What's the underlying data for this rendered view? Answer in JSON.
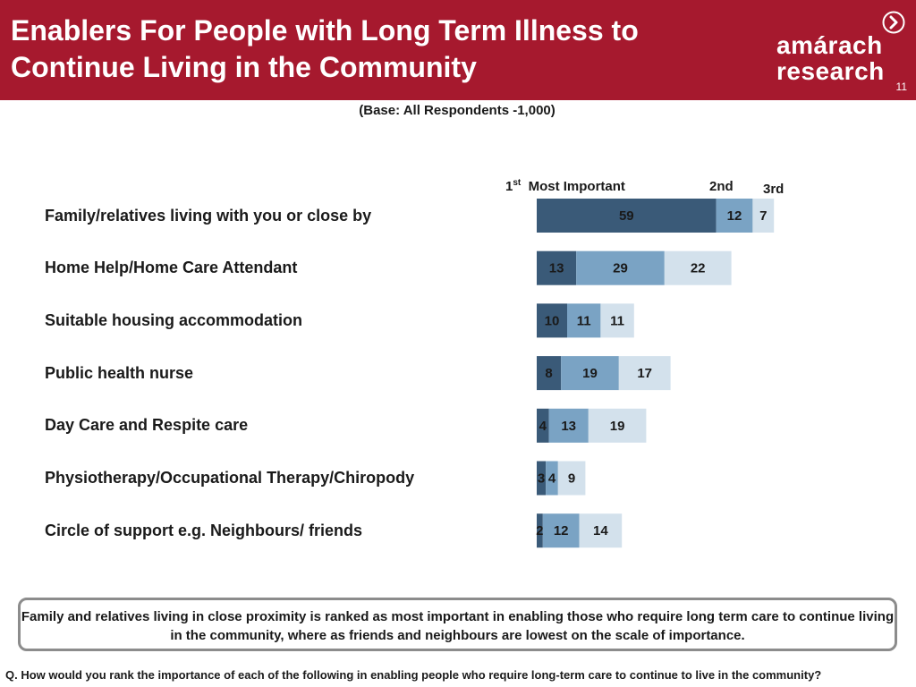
{
  "header": {
    "title_line1": "Enablers For People with Long Term Illness to",
    "title_line2": "Continue Living in the Community",
    "logo_line1": "amárach",
    "logo_line2": "research",
    "logo_icon": "chevron-circle-icon",
    "page_number": "11",
    "background_color": "#a6192e"
  },
  "base_note": "(Base:  All Respondents -1,000)",
  "legend": {
    "first_number": "1",
    "first_sup": "st",
    "first_rest": "Most Important",
    "second": "2nd",
    "third": "3rd"
  },
  "chart_data": {
    "type": "bar",
    "orientation": "horizontal-stacked",
    "categories": [
      "Family/relatives living with you or close by",
      "Home Help/Home Care Attendant",
      "Suitable housing accommodation",
      "Public health nurse",
      "Day Care and Respite care",
      "Physiotherapy/Occupational Therapy/Chiropody",
      "Circle of support e.g. Neighbours/ friends"
    ],
    "series": [
      {
        "name": "1st Most Important",
        "values": [
          59,
          13,
          10,
          8,
          4,
          3,
          2
        ],
        "color": "#3a5a78"
      },
      {
        "name": "2nd",
        "values": [
          12,
          29,
          11,
          19,
          13,
          4,
          12
        ],
        "color": "#7aa3c4"
      },
      {
        "name": "3rd",
        "values": [
          7,
          22,
          11,
          17,
          19,
          9,
          14
        ],
        "color": "#d3e1ec"
      }
    ],
    "data_labels": true,
    "grid": false,
    "legend_placement": "top"
  },
  "summary": "Family and relatives living in close proximity is ranked as most important in enabling those who require long term care to continue living in the community, where as friends and neighbours are lowest on the scale of importance.",
  "question": "Q. How would you rank the importance of each of the following in enabling people who require long-term care to continue to live in the community?"
}
